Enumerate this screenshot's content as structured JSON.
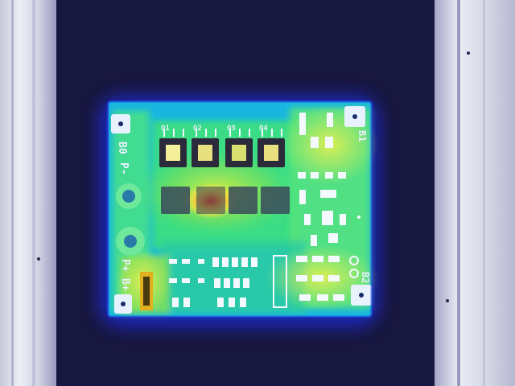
{
  "image": {
    "subject": "thermal-camera-overlay-of-battery-protection-pcb",
    "palette": {
      "background_dark": "#17163f",
      "frame_light": "#e4e4ef",
      "frame_mid": "#a9aac8",
      "thermal_cold": "#1a2bd6",
      "thermal_cool": "#00b4e6",
      "thermal_mid": "#2ee08a",
      "thermal_warm": "#d8f040",
      "thermal_hot": "#ffd020",
      "hotspot": "#ff3a1a",
      "silkscreen": "#ffffff"
    }
  },
  "board": {
    "labels": {
      "b0": "B0",
      "p_minus": "P-",
      "p_plus": "P+",
      "b_plus": "B+",
      "b1": "B1",
      "b2": "B2",
      "mos_top": [
        "Q1",
        "Q2",
        "Q3",
        "Q4"
      ]
    }
  }
}
